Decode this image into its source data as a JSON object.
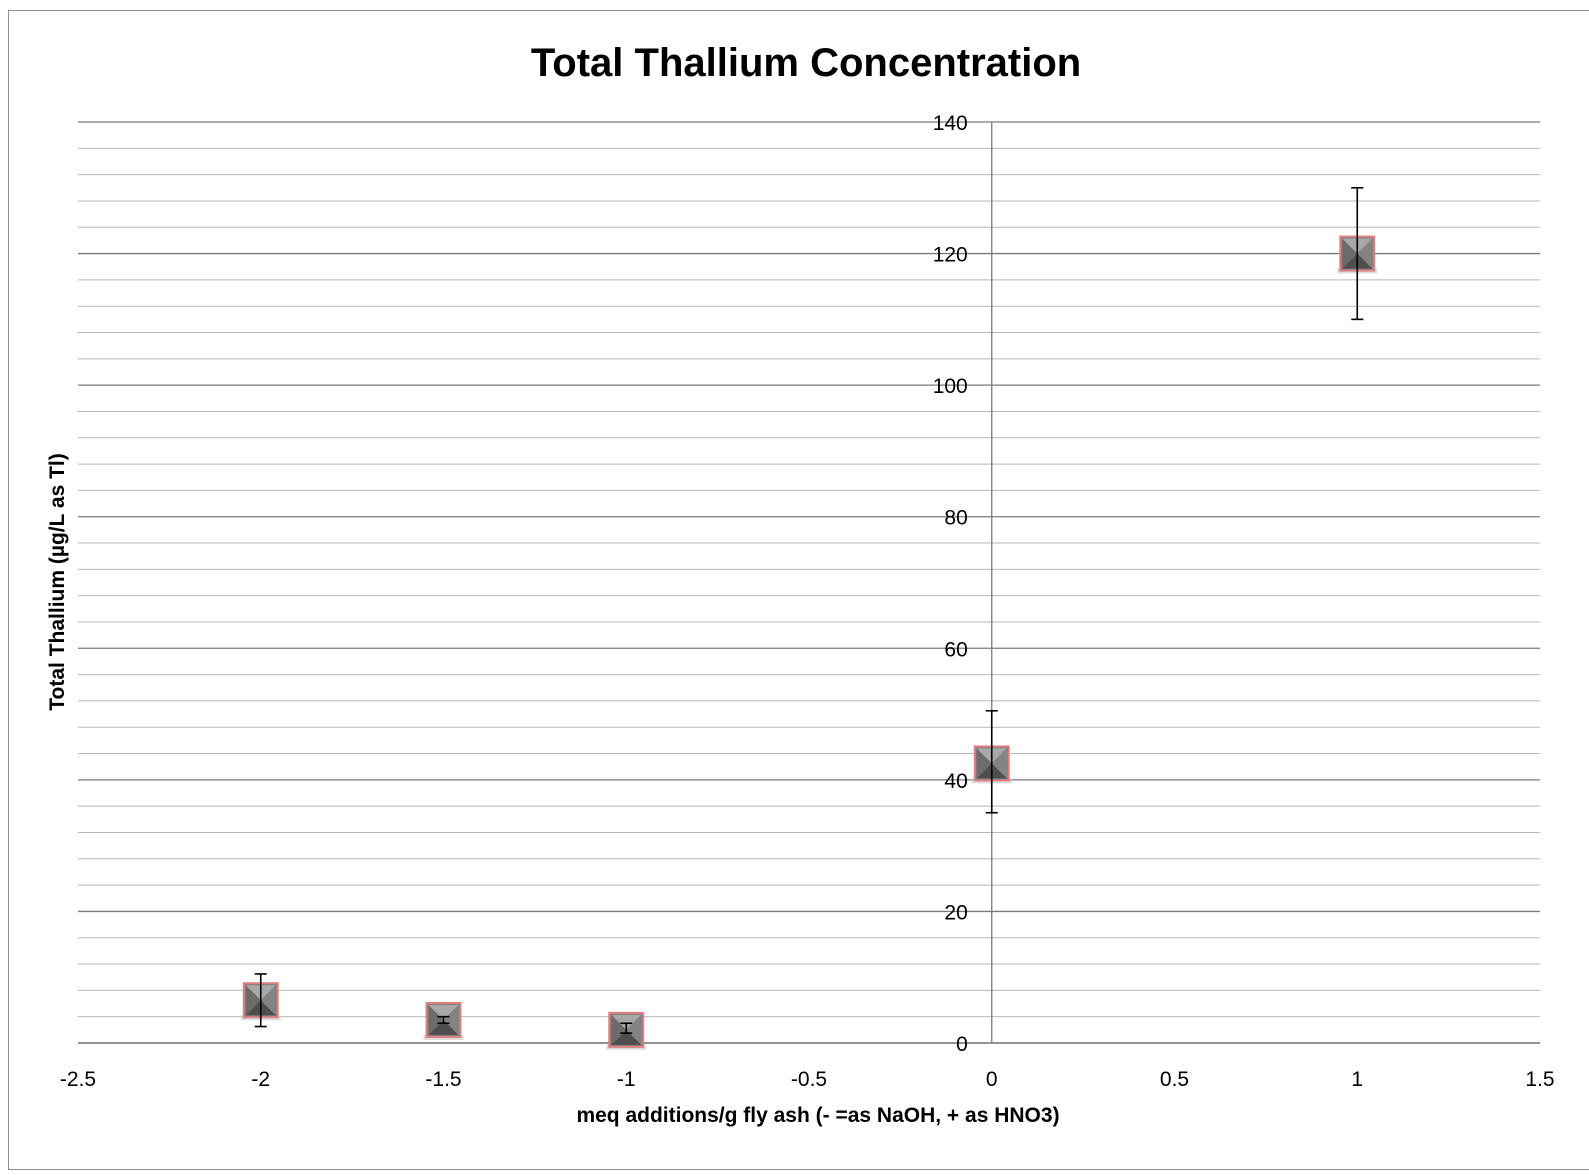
{
  "chart_data": {
    "type": "scatter",
    "title": "Total Thallium Concentration",
    "xlabel": "meq additions/g fly ash (- =as NaOH, + as HNO3)",
    "ylabel": "Total Thallium (µg/L as Tl)",
    "xlim": [
      -2.5,
      1.5
    ],
    "ylim": [
      0,
      140
    ],
    "x_ticks": [
      "-2.5",
      "-2",
      "-1.5",
      "-1",
      "-0.5",
      "0",
      "0.5",
      "1",
      "1.5"
    ],
    "y_ticks": [
      "0",
      "20",
      "40",
      "60",
      "80",
      "100",
      "120",
      "140"
    ],
    "grid": "horizontal major and minor",
    "legend": "none",
    "series": [
      {
        "points": [
          {
            "x": -2,
            "y": 6.5,
            "err_low": 2.5,
            "err_high": 10.5
          },
          {
            "x": -1.5,
            "y": 3.5,
            "err_low": 3.0,
            "err_high": 4.0
          },
          {
            "x": -1,
            "y": 2.0,
            "err_low": 1.5,
            "err_high": 3.0
          },
          {
            "x": 0,
            "y": 42.5,
            "err_low": 35.0,
            "err_high": 50.5
          },
          {
            "x": 1,
            "y": 120,
            "err_low": 110,
            "err_high": 130
          }
        ],
        "marker_color": "#7f7f7f",
        "marker_border": "#e08080"
      }
    ]
  }
}
